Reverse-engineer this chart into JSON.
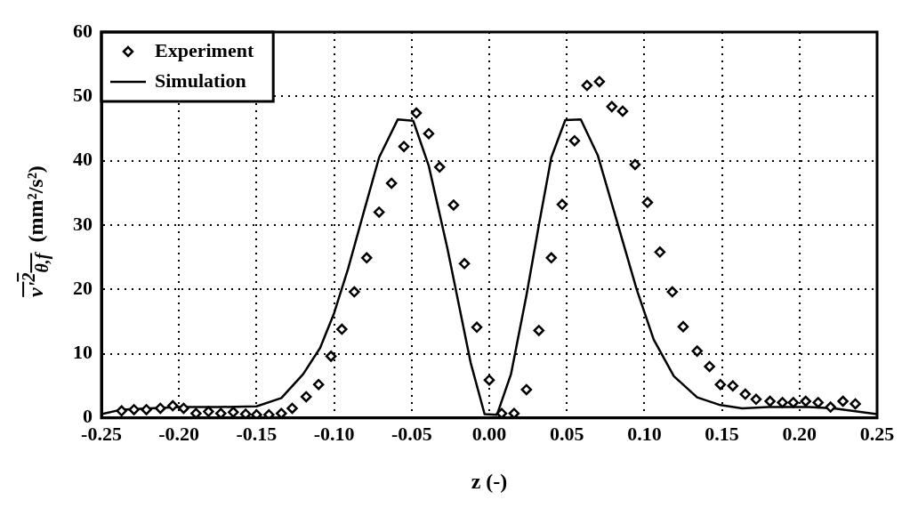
{
  "chart_data": {
    "type": "scatter",
    "xlabel": "z (-)",
    "ylabel": "v'$^{2}$$_{θ,f}$ (mm²/s²)",
    "xlim": [
      -0.25,
      0.25
    ],
    "xticks": [
      {
        "value": -0.25,
        "label": "-0.25"
      },
      {
        "value": -0.2,
        "label": "-0.20"
      },
      {
        "value": -0.15,
        "label": "-0.15"
      },
      {
        "value": -0.1,
        "label": "-0.10"
      },
      {
        "value": -0.05,
        "label": "-0.05"
      },
      {
        "value": 0,
        "label": "0.00"
      },
      {
        "value": 0.05,
        "label": "0.05"
      },
      {
        "value": 0.1,
        "label": "0.10"
      },
      {
        "value": 0.15,
        "label": "0.15"
      },
      {
        "value": 0.2,
        "label": "0.20"
      },
      {
        "value": 0.25,
        "label": "0.25"
      }
    ],
    "ylim": [
      0,
      60
    ],
    "yticks": [
      0,
      10,
      20,
      30,
      40,
      50,
      60
    ],
    "grid": true,
    "legend": "top left",
    "series": [
      {
        "name": "Experiment",
        "marker": "diamond",
        "color": "#000000",
        "x": [
          -0.237,
          -0.229,
          -0.221,
          -0.212,
          -0.204,
          -0.197,
          -0.189,
          -0.181,
          -0.173,
          -0.165,
          -0.157,
          -0.15,
          -0.142,
          -0.134,
          -0.127,
          -0.118,
          -0.11,
          -0.102,
          -0.095,
          -0.087,
          -0.079,
          -0.071,
          -0.063,
          -0.055,
          -0.047,
          -0.039,
          -0.032,
          -0.023,
          -0.016,
          -0.008,
          0.0,
          0.008,
          0.016,
          0.024,
          0.032,
          0.04,
          0.047,
          0.055,
          0.063,
          0.071,
          0.079,
          0.086,
          0.094,
          0.102,
          0.11,
          0.118,
          0.125,
          0.134,
          0.142,
          0.149,
          0.157,
          0.165,
          0.172,
          0.181,
          0.189,
          0.196,
          0.204,
          0.212,
          0.22,
          0.228,
          0.236
        ],
        "values": [
          1.1,
          1.3,
          1.3,
          1.5,
          1.9,
          1.5,
          0.7,
          1.0,
          0.7,
          0.9,
          0.6,
          0.5,
          0.5,
          0.7,
          1.5,
          3.3,
          5.2,
          9.6,
          13.8,
          19.6,
          24.9,
          32.0,
          36.5,
          42.2,
          47.4,
          44.2,
          39.0,
          33.1,
          24.0,
          14.1,
          5.9,
          0.7,
          0.7,
          4.4,
          13.6,
          24.9,
          33.2,
          43.1,
          51.7,
          52.3,
          48.4,
          47.7,
          39.4,
          33.5,
          25.8,
          19.6,
          14.2,
          10.4,
          8.0,
          5.2,
          5.0,
          3.7,
          2.9,
          2.6,
          2.4,
          2.4,
          2.6,
          2.4,
          1.7,
          2.6,
          2.2
        ]
      },
      {
        "name": "Simulation",
        "type": "line",
        "marker": "none",
        "line_style": "solid",
        "color": "#000000",
        "x": [
          -0.25,
          -0.237,
          -0.2,
          -0.174,
          -0.15,
          -0.134,
          -0.12,
          -0.109,
          -0.1,
          -0.091,
          -0.081,
          -0.071,
          -0.059,
          -0.049,
          -0.039,
          -0.027,
          -0.012,
          -0.003,
          0.005,
          0.014,
          0.024,
          0.032,
          0.04,
          0.049,
          0.059,
          0.07,
          0.083,
          0.095,
          0.106,
          0.119,
          0.134,
          0.149,
          0.163,
          0.18,
          0.206,
          0.222,
          0.25
        ],
        "values": [
          0.6,
          1.3,
          1.7,
          1.7,
          1.8,
          3.1,
          6.8,
          10.9,
          16.3,
          23.2,
          31.9,
          40.5,
          46.4,
          46.2,
          39.2,
          26.4,
          8.6,
          0.6,
          0.5,
          6.8,
          19.1,
          30.0,
          40.5,
          46.3,
          46.4,
          40.8,
          30.0,
          20.0,
          12.2,
          6.5,
          3.2,
          2.0,
          1.5,
          1.7,
          1.7,
          1.5,
          0.6
        ]
      }
    ]
  }
}
